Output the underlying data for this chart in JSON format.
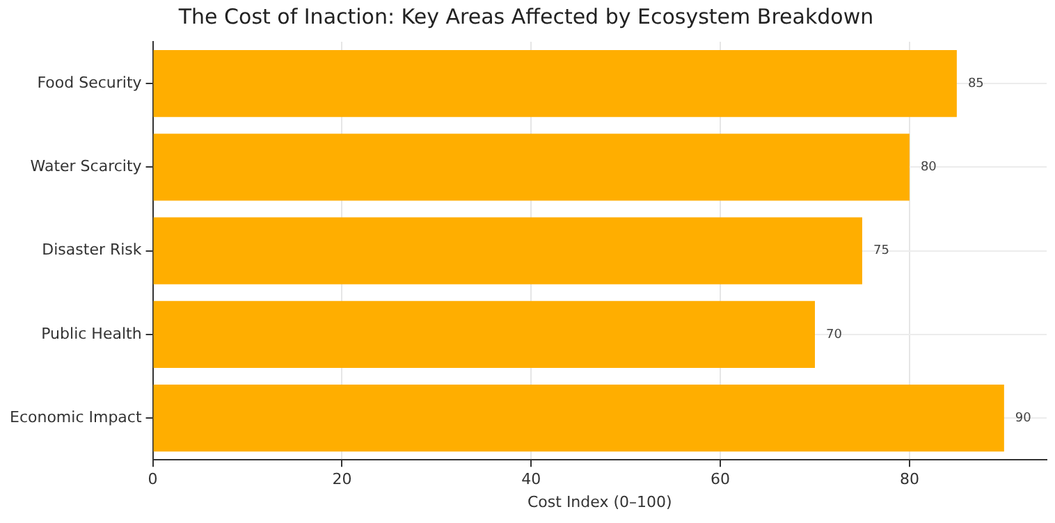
{
  "chart_data": {
    "type": "bar",
    "orientation": "horizontal",
    "title": "The Cost of Inaction: Key Areas Affected by Ecosystem Breakdown",
    "xlabel": "Cost Index (0–100)",
    "categories": [
      "Food Security",
      "Water Scarcity",
      "Disaster Risk",
      "Public Health",
      "Economic Impact"
    ],
    "values": [
      85,
      80,
      75,
      70,
      90
    ],
    "color": "#ffae00",
    "xlim": [
      0,
      94.5
    ],
    "xticks": [
      0,
      20,
      40,
      60,
      80
    ],
    "grid": true,
    "data_labels": true
  }
}
